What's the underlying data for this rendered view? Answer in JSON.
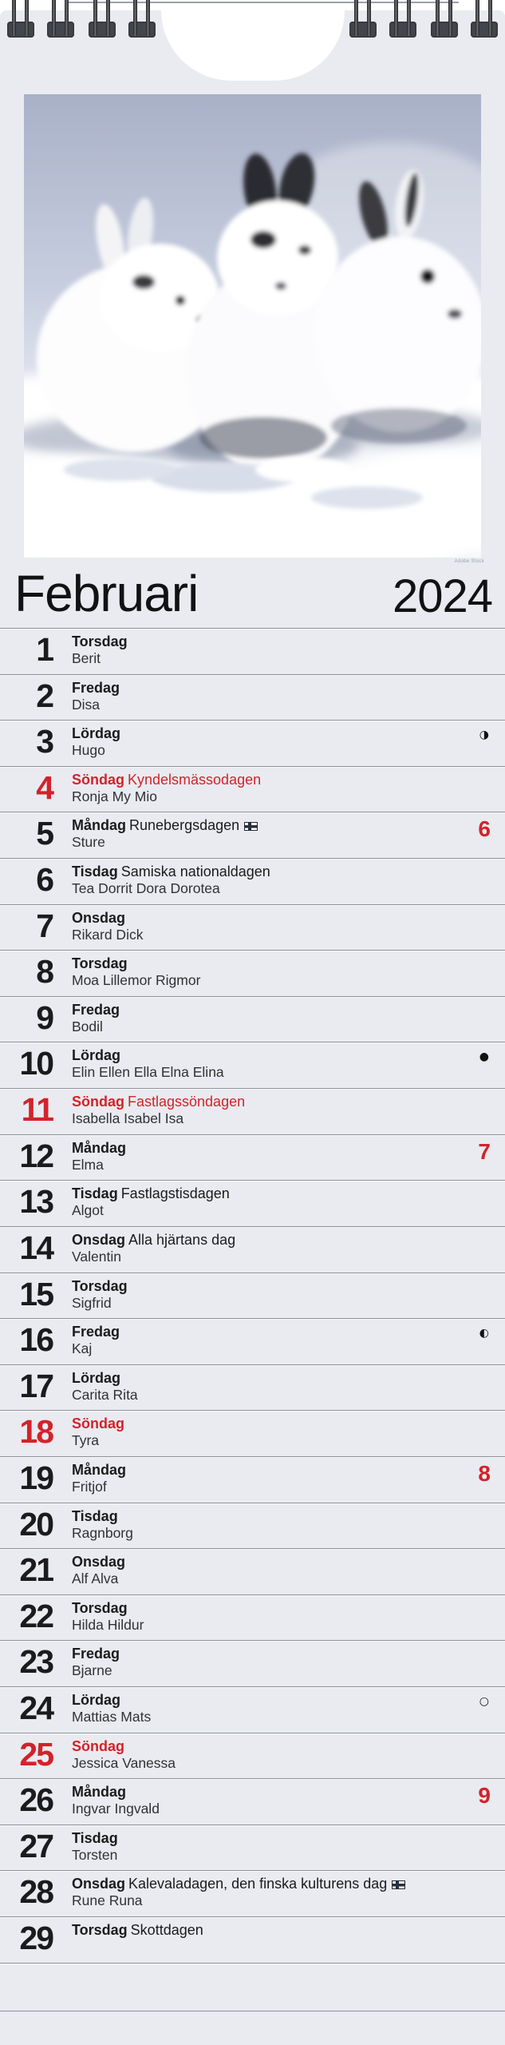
{
  "month": "Februari",
  "year": "2024",
  "photo_credit": "Adobe Stock",
  "photo_alt": "three-white-rabbits-in-snow",
  "colors": {
    "accent_red": "#d2232a",
    "card_bg": "#e9ebf0",
    "separator": "#8d9197"
  },
  "icons": {
    "moon_last_quarter": "◑",
    "moon_new": "●",
    "moon_first_quarter": "◐",
    "moon_full": "○",
    "holiday_flag": "finland-flag"
  },
  "days": [
    {
      "num": "1",
      "weekday": "Torsdag",
      "holiday": "",
      "names": "Berit",
      "sunday": false,
      "week": "",
      "moon": "",
      "flag": false
    },
    {
      "num": "2",
      "weekday": "Fredag",
      "holiday": "",
      "names": "Disa",
      "sunday": false,
      "week": "",
      "moon": "",
      "flag": false
    },
    {
      "num": "3",
      "weekday": "Lördag",
      "holiday": "",
      "names": "Hugo",
      "sunday": false,
      "week": "",
      "moon": "◑",
      "flag": false
    },
    {
      "num": "4",
      "weekday": "Söndag",
      "holiday": "Kyndelsmässodagen",
      "names": "Ronja My Mio",
      "sunday": true,
      "week": "",
      "moon": "",
      "flag": false
    },
    {
      "num": "5",
      "weekday": "Måndag",
      "holiday": "Runebergsdagen",
      "names": "Sture",
      "sunday": false,
      "week": "6",
      "moon": "",
      "flag": true
    },
    {
      "num": "6",
      "weekday": "Tisdag",
      "holiday": "Samiska nationaldagen",
      "names": "Tea Dorrit Dora Dorotea",
      "sunday": false,
      "week": "",
      "moon": "",
      "flag": false
    },
    {
      "num": "7",
      "weekday": "Onsdag",
      "holiday": "",
      "names": "Rikard Dick",
      "sunday": false,
      "week": "",
      "moon": "",
      "flag": false
    },
    {
      "num": "8",
      "weekday": "Torsdag",
      "holiday": "",
      "names": "Moa Lillemor Rigmor",
      "sunday": false,
      "week": "",
      "moon": "",
      "flag": false
    },
    {
      "num": "9",
      "weekday": "Fredag",
      "holiday": "",
      "names": "Bodil",
      "sunday": false,
      "week": "",
      "moon": "",
      "flag": false
    },
    {
      "num": "10",
      "weekday": "Lördag",
      "holiday": "",
      "names": "Elin Ellen Ella Elna Elina",
      "sunday": false,
      "week": "",
      "moon": "●",
      "flag": false
    },
    {
      "num": "11",
      "weekday": "Söndag",
      "holiday": "Fastlagssöndagen",
      "names": "Isabella Isabel Isa",
      "sunday": true,
      "week": "",
      "moon": "",
      "flag": false
    },
    {
      "num": "12",
      "weekday": "Måndag",
      "holiday": "",
      "names": "Elma",
      "sunday": false,
      "week": "7",
      "moon": "",
      "flag": false
    },
    {
      "num": "13",
      "weekday": "Tisdag",
      "holiday": "Fastlagstisdagen",
      "names": "Algot",
      "sunday": false,
      "week": "",
      "moon": "",
      "flag": false
    },
    {
      "num": "14",
      "weekday": "Onsdag",
      "holiday": "Alla hjärtans dag",
      "names": "Valentin",
      "sunday": false,
      "week": "",
      "moon": "",
      "flag": false
    },
    {
      "num": "15",
      "weekday": "Torsdag",
      "holiday": "",
      "names": "Sigfrid",
      "sunday": false,
      "week": "",
      "moon": "",
      "flag": false
    },
    {
      "num": "16",
      "weekday": "Fredag",
      "holiday": "",
      "names": "Kaj",
      "sunday": false,
      "week": "",
      "moon": "◐",
      "flag": false
    },
    {
      "num": "17",
      "weekday": "Lördag",
      "holiday": "",
      "names": "Carita Rita",
      "sunday": false,
      "week": "",
      "moon": "",
      "flag": false
    },
    {
      "num": "18",
      "weekday": "Söndag",
      "holiday": "",
      "names": "Tyra",
      "sunday": true,
      "week": "",
      "moon": "",
      "flag": false
    },
    {
      "num": "19",
      "weekday": "Måndag",
      "holiday": "",
      "names": "Fritjof",
      "sunday": false,
      "week": "8",
      "moon": "",
      "flag": false
    },
    {
      "num": "20",
      "weekday": "Tisdag",
      "holiday": "",
      "names": "Ragnborg",
      "sunday": false,
      "week": "",
      "moon": "",
      "flag": false
    },
    {
      "num": "21",
      "weekday": "Onsdag",
      "holiday": "",
      "names": "Alf Alva",
      "sunday": false,
      "week": "",
      "moon": "",
      "flag": false
    },
    {
      "num": "22",
      "weekday": "Torsdag",
      "holiday": "",
      "names": "Hilda Hildur",
      "sunday": false,
      "week": "",
      "moon": "",
      "flag": false
    },
    {
      "num": "23",
      "weekday": "Fredag",
      "holiday": "",
      "names": "Bjarne",
      "sunday": false,
      "week": "",
      "moon": "",
      "flag": false
    },
    {
      "num": "24",
      "weekday": "Lördag",
      "holiday": "",
      "names": "Mattias Mats",
      "sunday": false,
      "week": "",
      "moon": "○",
      "flag": false
    },
    {
      "num": "25",
      "weekday": "Söndag",
      "holiday": "",
      "names": "Jessica Vanessa",
      "sunday": true,
      "week": "",
      "moon": "",
      "flag": false
    },
    {
      "num": "26",
      "weekday": "Måndag",
      "holiday": "",
      "names": "Ingvar Ingvald",
      "sunday": false,
      "week": "9",
      "moon": "",
      "flag": false
    },
    {
      "num": "27",
      "weekday": "Tisdag",
      "holiday": "",
      "names": "Torsten",
      "sunday": false,
      "week": "",
      "moon": "",
      "flag": false
    },
    {
      "num": "28",
      "weekday": "Onsdag",
      "holiday": "Kalevaladagen, den finska kulturens dag",
      "names": "Rune Runa",
      "sunday": false,
      "week": "",
      "moon": "",
      "flag": true
    },
    {
      "num": "29",
      "weekday": "Torsdag",
      "holiday": "Skottdagen",
      "names": "",
      "sunday": false,
      "week": "",
      "moon": "",
      "flag": false
    }
  ]
}
